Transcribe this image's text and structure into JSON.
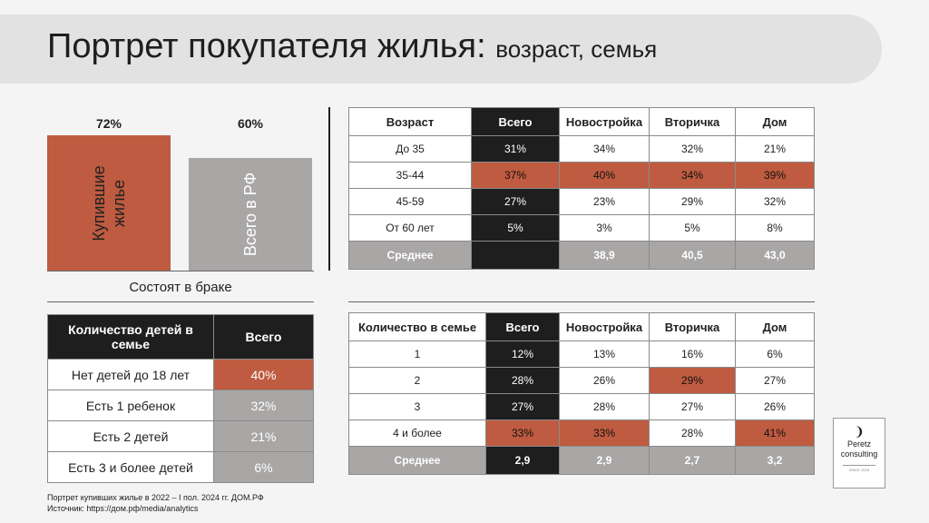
{
  "title": {
    "main": "Портрет покупателя жилья:",
    "sub": "возраст, семья"
  },
  "marriage": {
    "bars": [
      {
        "value_label": "72%",
        "value": 72,
        "label_line1": "Купившие",
        "label_line2": "жилье",
        "color": "#bf5b40"
      },
      {
        "value_label": "60%",
        "value": 60,
        "label_line1": "Всего в РФ",
        "label_line2": "",
        "color": "#a9a6a6"
      }
    ],
    "caption": "Состоят в браке"
  },
  "kids_table": {
    "header": [
      "Количество детей в семье",
      "Всего"
    ],
    "rows": [
      {
        "label": "Нет детей до 18 лет",
        "value": "40%",
        "color": "#bf5b40"
      },
      {
        "label": "Есть 1 ребенок",
        "value": "32%",
        "color": "#a9a6a6"
      },
      {
        "label": "Есть 2 детей",
        "value": "21%",
        "color": "#a9a6a6"
      },
      {
        "label": "Есть 3 и более детей",
        "value": "6%",
        "color": "#a9a6a6"
      }
    ]
  },
  "age_table": {
    "header": [
      "Возраст",
      "Всего",
      "Новостройка",
      "Вторичка",
      "Дом"
    ],
    "rows": [
      {
        "cells": [
          "До 35",
          "31%",
          "34%",
          "32%",
          "21%"
        ],
        "highlight": false
      },
      {
        "cells": [
          "35-44",
          "37%",
          "40%",
          "34%",
          "39%"
        ],
        "highlight": true
      },
      {
        "cells": [
          "45-59",
          "27%",
          "23%",
          "29%",
          "32%"
        ],
        "highlight": false
      },
      {
        "cells": [
          "От 60 лет",
          "5%",
          "3%",
          "5%",
          "8%"
        ],
        "highlight": false
      }
    ],
    "avg": [
      "Среднее",
      "",
      "38,9",
      "40,5",
      "43,0"
    ]
  },
  "family_table": {
    "header": [
      "Количество в семье",
      "Всего",
      "Новостройка",
      "Вторичка",
      "Дом"
    ],
    "rows": [
      {
        "cells": [
          "1",
          "12%",
          "13%",
          "16%",
          "6%"
        ],
        "hl": [
          false,
          false,
          false,
          false,
          false
        ]
      },
      {
        "cells": [
          "2",
          "28%",
          "26%",
          "29%",
          "27%"
        ],
        "hl": [
          false,
          false,
          false,
          true,
          false
        ]
      },
      {
        "cells": [
          "3",
          "27%",
          "28%",
          "27%",
          "26%"
        ],
        "hl": [
          false,
          false,
          false,
          false,
          false
        ]
      },
      {
        "cells": [
          "4 и более",
          "33%",
          "33%",
          "28%",
          "41%"
        ],
        "hl": [
          false,
          true,
          true,
          false,
          true
        ]
      }
    ],
    "avg": [
      "Среднее",
      "2,9",
      "2,9",
      "2,7",
      "3,2"
    ]
  },
  "footer": {
    "line1": "Портрет купивших жилье в 2022 – I пол. 2024 гг. ДОМ.РФ",
    "line2": "Источник: https://дом.рф/media/analytics"
  },
  "logo": {
    "line1": "Peretz",
    "line2": "consulting",
    "tagline": "SINCE 2018"
  }
}
